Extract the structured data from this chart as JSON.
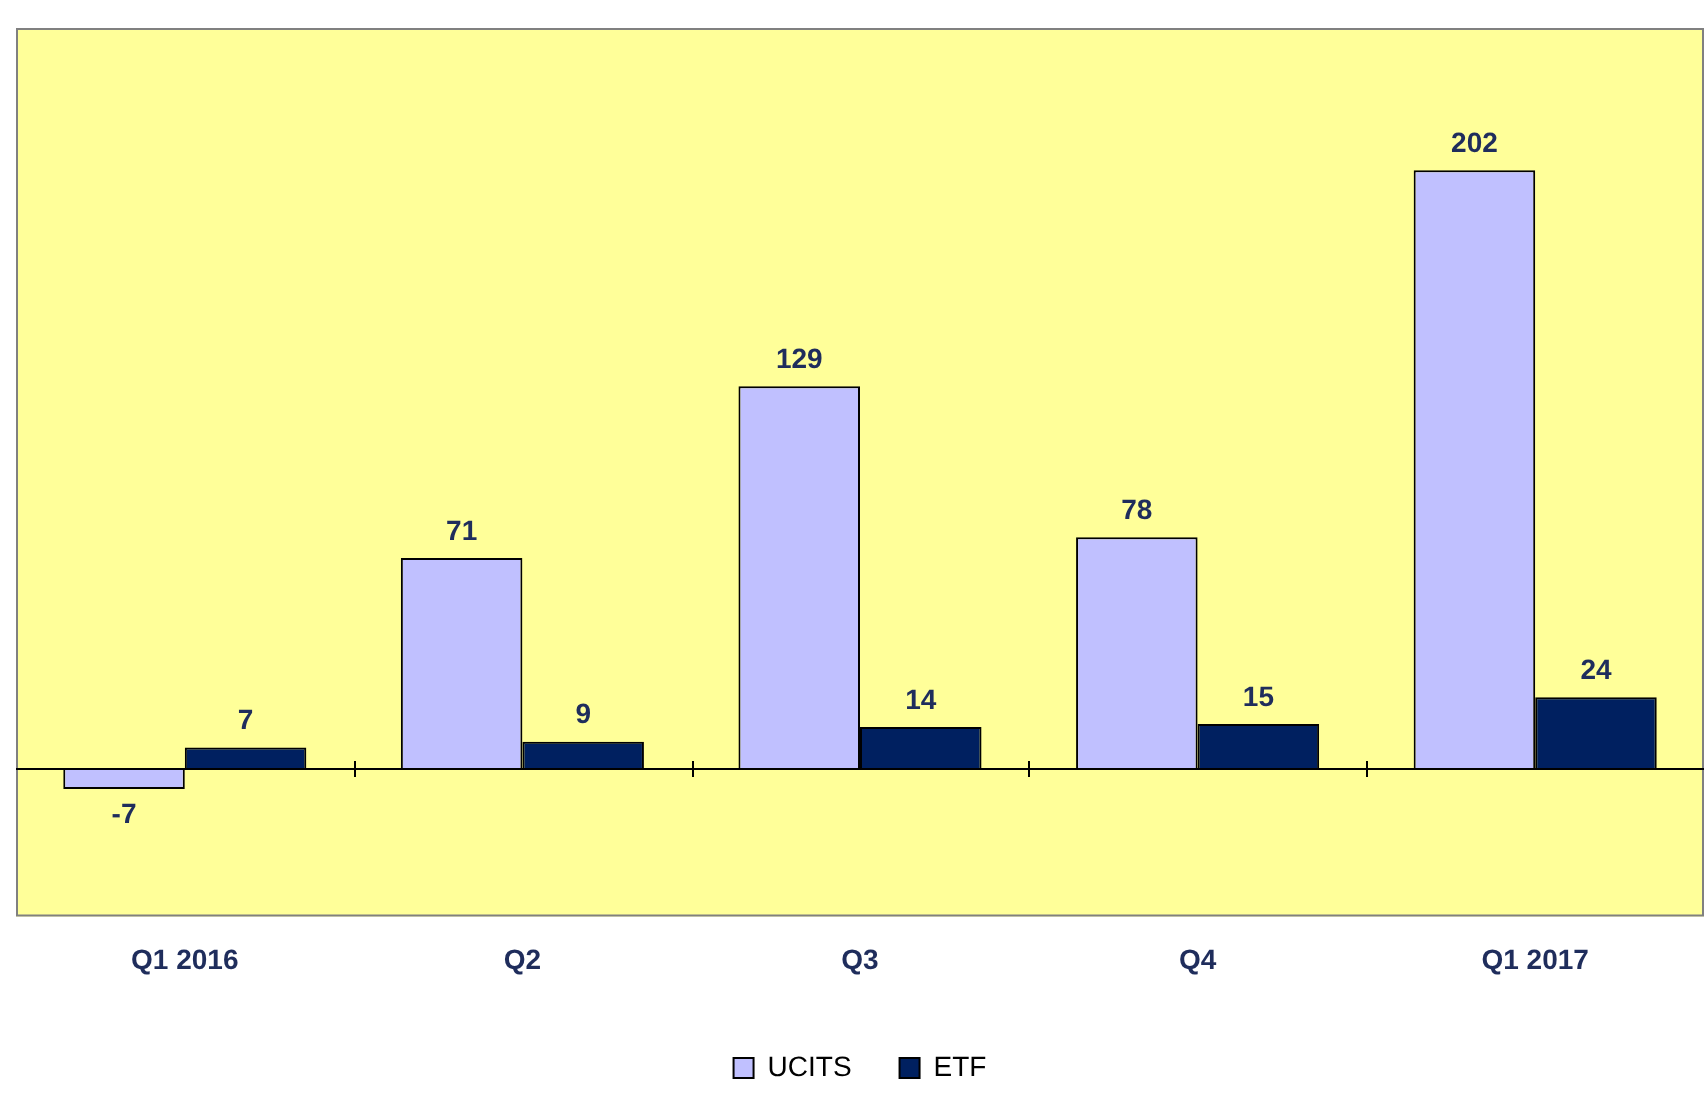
{
  "chart_data": {
    "type": "bar",
    "categories": [
      "Q1 2016",
      "Q2",
      "Q3",
      "Q4",
      "Q1 2017"
    ],
    "series": [
      {
        "name": "UCITS",
        "color": "#c0c0ff",
        "values": [
          -7,
          71,
          129,
          78,
          202
        ]
      },
      {
        "name": "ETF",
        "color": "#002060",
        "values": [
          7,
          9,
          14,
          15,
          24
        ]
      }
    ],
    "ylim": [
      -50,
      250
    ],
    "tick_labels": "x",
    "data_labels": true,
    "grid": false,
    "legend": "bottom"
  }
}
